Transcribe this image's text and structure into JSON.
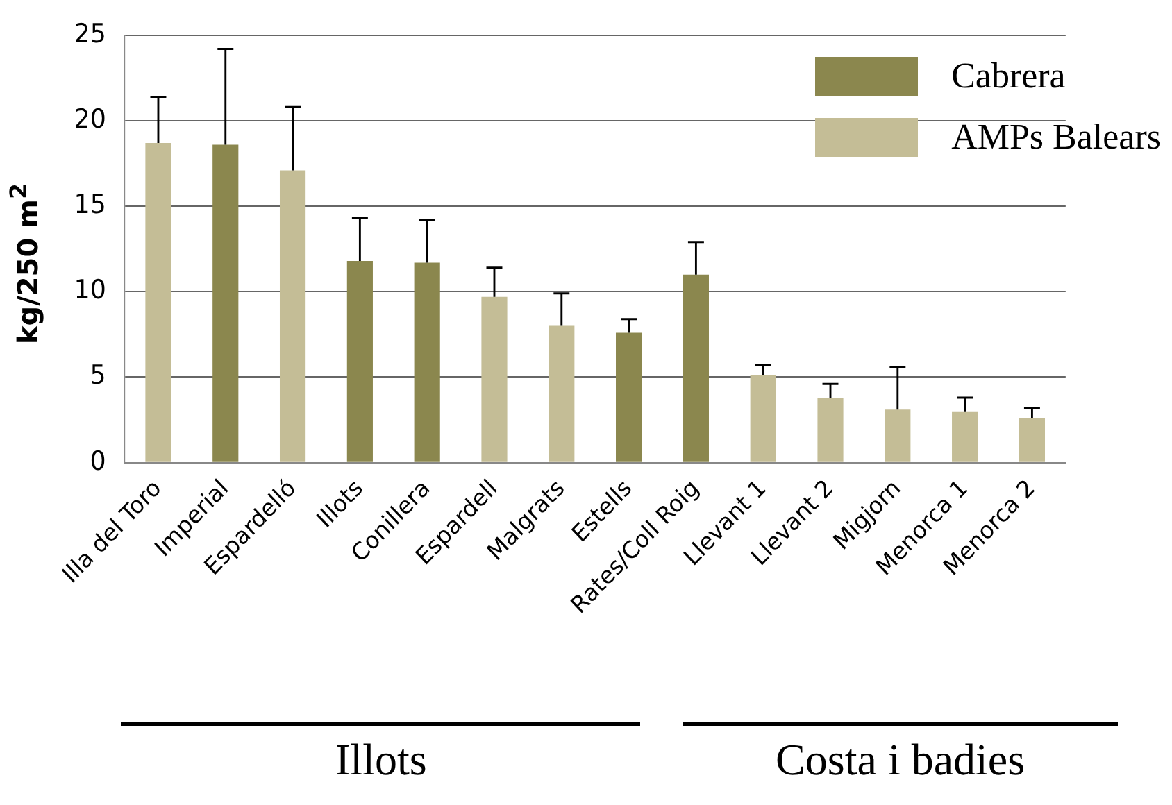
{
  "chart_data": {
    "type": "bar",
    "ylabel": "kg/250 m$^{2}$",
    "categories": [
      "Illa del Toro",
      "Imperial",
      "Espardelló",
      "Illots",
      "Conillera",
      "Espardell",
      "Malgrats",
      "Estells",
      "Rates/Coll Roig",
      "Llevant 1",
      "Llevant 2",
      "Migjorn",
      "Menorca 1",
      "Menorca 2"
    ],
    "series": [
      {
        "name": "Cabrera",
        "color": "#8b874e",
        "values": [
          null,
          18.6,
          null,
          11.8,
          11.7,
          null,
          null,
          7.6,
          11.0,
          null,
          null,
          null,
          null,
          null
        ],
        "errors": [
          null,
          [
            18.6,
            24.2
          ],
          null,
          [
            11.8,
            14.3
          ],
          [
            11.7,
            14.2
          ],
          null,
          null,
          [
            7.6,
            8.4
          ],
          [
            11.0,
            12.9
          ],
          null,
          null,
          null,
          null,
          null
        ]
      },
      {
        "name": "AMPs Balears",
        "color": "#c4bd96",
        "values": [
          18.7,
          null,
          17.1,
          null,
          null,
          9.7,
          8.0,
          null,
          null,
          5.1,
          3.8,
          3.1,
          3.0,
          2.6
        ],
        "errors": [
          [
            18.7,
            21.4
          ],
          null,
          [
            17.1,
            20.8
          ],
          null,
          null,
          [
            9.7,
            11.4
          ],
          [
            8.0,
            9.9
          ],
          null,
          null,
          [
            5.1,
            5.7
          ],
          [
            3.8,
            4.6
          ],
          [
            3.1,
            5.6
          ],
          [
            3.0,
            3.8
          ],
          [
            2.6,
            3.2
          ]
        ]
      }
    ],
    "ylim": [
      0,
      25
    ],
    "yticks": [
      0,
      5,
      10,
      15,
      20,
      25
    ],
    "grid": "y",
    "legend": "top right",
    "annotations": [
      "Illots",
      "Costa i badies"
    ]
  }
}
